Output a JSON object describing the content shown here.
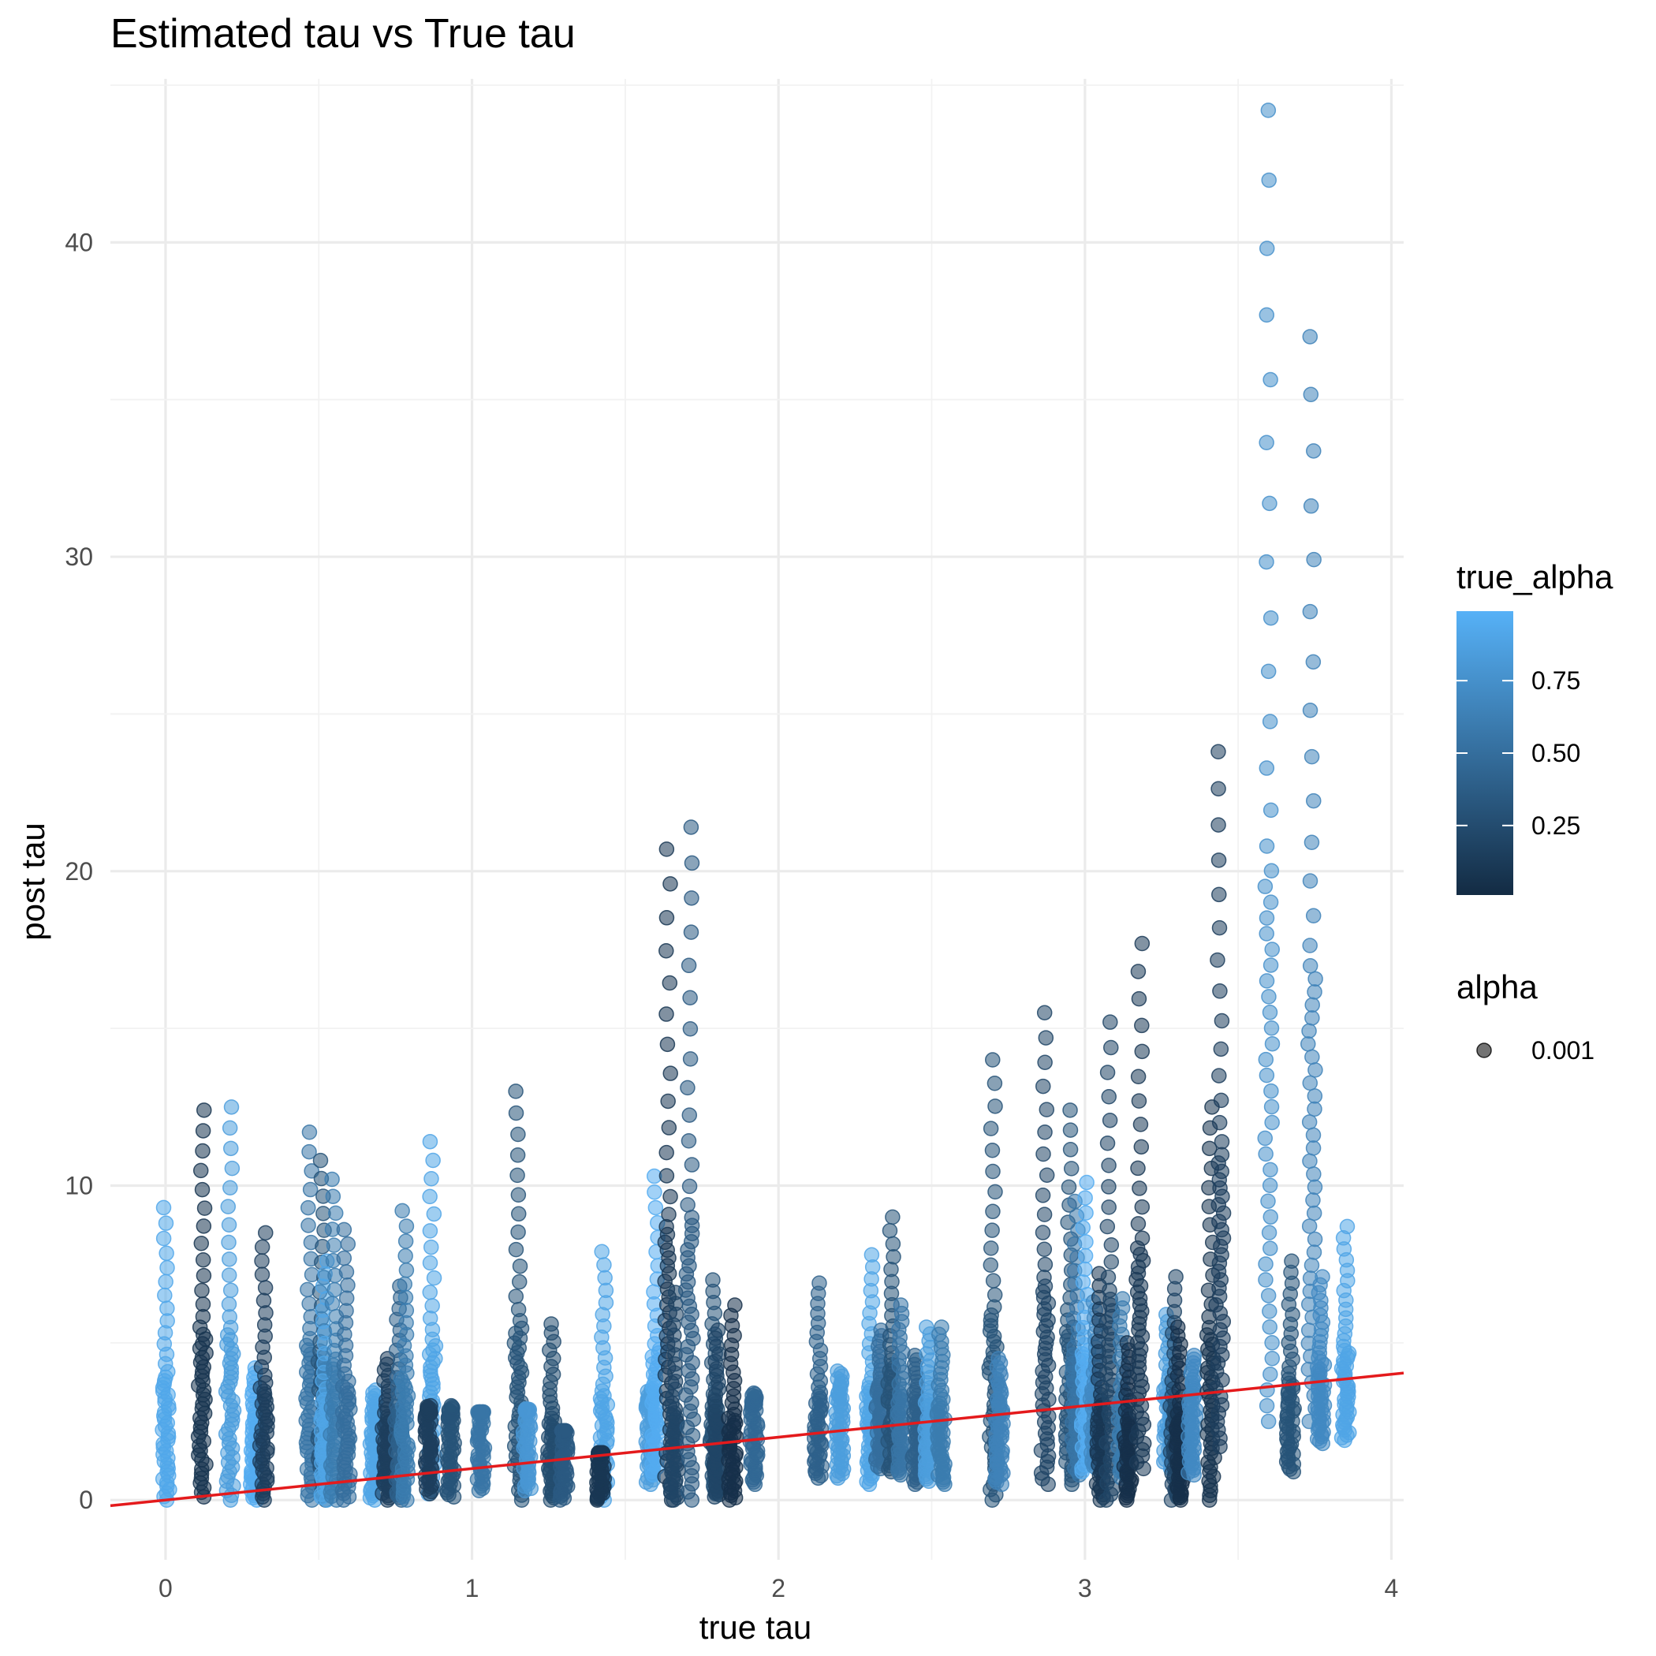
{
  "chart_data": {
    "type": "scatter",
    "title": "Estimated tau vs True tau",
    "xlabel": "true tau",
    "ylabel": "post tau",
    "xlim": [
      -0.18,
      4.04
    ],
    "ylim": [
      -1.9,
      45.2
    ],
    "x_ticks": [
      "0",
      "1",
      "2",
      "3",
      "4"
    ],
    "x_tick_values": [
      0,
      1,
      2,
      3,
      4
    ],
    "y_ticks": [
      "0",
      "10",
      "20",
      "30",
      "40"
    ],
    "y_tick_values": [
      0,
      10,
      20,
      30,
      40
    ],
    "grid": true,
    "color_legend": {
      "title": "true_alpha",
      "ticks": [
        "0.25",
        "0.50",
        "0.75"
      ],
      "tick_values": [
        0.25,
        0.5,
        0.75
      ],
      "range": [
        0.01,
        0.99
      ],
      "low_color": "#132B43",
      "high_color": "#56B1F7"
    },
    "alpha_legend": {
      "title": "alpha",
      "labels": [
        "0.001"
      ]
    },
    "reference_line": {
      "label": "y = x",
      "slope": 1,
      "intercept": 0,
      "color": "#E41A1C"
    },
    "series": [
      {
        "x": 0.0,
        "true_alpha": 0.92,
        "min": 0.0,
        "max": 9.3
      },
      {
        "x": 0.12,
        "true_alpha": 0.08,
        "min": 0.1,
        "max": 12.4
      },
      {
        "x": 0.21,
        "true_alpha": 0.85,
        "min": 0.0,
        "max": 12.5
      },
      {
        "x": 0.29,
        "true_alpha": 0.95,
        "min": 0.0,
        "max": 4.2
      },
      {
        "x": 0.32,
        "true_alpha": 0.15,
        "min": 0.0,
        "max": 8.5
      },
      {
        "x": 0.47,
        "true_alpha": 0.55,
        "min": 0.0,
        "max": 11.7
      },
      {
        "x": 0.51,
        "true_alpha": 0.3,
        "min": 0.0,
        "max": 10.8
      },
      {
        "x": 0.52,
        "true_alpha": 0.9,
        "min": 0.0,
        "max": 7.6
      },
      {
        "x": 0.55,
        "true_alpha": 0.6,
        "min": 0.0,
        "max": 10.2
      },
      {
        "x": 0.59,
        "true_alpha": 0.5,
        "min": 0.0,
        "max": 8.6
      },
      {
        "x": 0.68,
        "true_alpha": 0.9,
        "min": 0.0,
        "max": 3.5
      },
      {
        "x": 0.72,
        "true_alpha": 0.15,
        "min": 0.0,
        "max": 4.5
      },
      {
        "x": 0.76,
        "true_alpha": 0.4,
        "min": 0.0,
        "max": 6.8
      },
      {
        "x": 0.78,
        "true_alpha": 0.6,
        "min": 0.0,
        "max": 9.2
      },
      {
        "x": 0.87,
        "true_alpha": 0.9,
        "min": 0.2,
        "max": 11.4
      },
      {
        "x": 0.86,
        "true_alpha": 0.15,
        "min": 0.2,
        "max": 3.0
      },
      {
        "x": 0.93,
        "true_alpha": 0.3,
        "min": 0.1,
        "max": 3.0
      },
      {
        "x": 1.03,
        "true_alpha": 0.55,
        "min": 0.3,
        "max": 2.8
      },
      {
        "x": 1.15,
        "true_alpha": 0.3,
        "min": 0.0,
        "max": 13.0
      },
      {
        "x": 1.18,
        "true_alpha": 0.8,
        "min": 0.3,
        "max": 2.9
      },
      {
        "x": 1.26,
        "true_alpha": 0.25,
        "min": 0.0,
        "max": 5.6
      },
      {
        "x": 1.3,
        "true_alpha": 0.35,
        "min": 0.0,
        "max": 2.2
      },
      {
        "x": 1.43,
        "true_alpha": 0.9,
        "min": 0.0,
        "max": 7.9
      },
      {
        "x": 1.42,
        "true_alpha": 0.1,
        "min": 0.0,
        "max": 1.5
      },
      {
        "x": 1.58,
        "true_alpha": 0.85,
        "min": 0.5,
        "max": 3.5
      },
      {
        "x": 1.6,
        "true_alpha": 0.95,
        "min": 0.8,
        "max": 10.3
      },
      {
        "x": 1.64,
        "true_alpha": 0.1,
        "min": 0.0,
        "max": 20.7
      },
      {
        "x": 1.66,
        "true_alpha": 0.2,
        "min": 0.0,
        "max": 6.6
      },
      {
        "x": 1.71,
        "true_alpha": 0.35,
        "min": 0.0,
        "max": 21.4
      },
      {
        "x": 1.79,
        "true_alpha": 0.3,
        "min": 0.2,
        "max": 7.0
      },
      {
        "x": 1.8,
        "true_alpha": 0.2,
        "min": 0.1,
        "max": 5.4
      },
      {
        "x": 1.85,
        "true_alpha": 0.05,
        "min": 0.0,
        "max": 6.2
      },
      {
        "x": 1.92,
        "true_alpha": 0.45,
        "min": 0.5,
        "max": 3.4
      },
      {
        "x": 2.13,
        "true_alpha": 0.4,
        "min": 0.7,
        "max": 6.9
      },
      {
        "x": 2.2,
        "true_alpha": 0.85,
        "min": 0.7,
        "max": 4.1
      },
      {
        "x": 2.3,
        "true_alpha": 0.9,
        "min": 0.5,
        "max": 7.8
      },
      {
        "x": 2.33,
        "true_alpha": 0.5,
        "min": 1.0,
        "max": 5.4
      },
      {
        "x": 2.37,
        "true_alpha": 0.3,
        "min": 0.9,
        "max": 9.0
      },
      {
        "x": 2.4,
        "true_alpha": 0.55,
        "min": 0.8,
        "max": 6.2
      },
      {
        "x": 2.45,
        "true_alpha": 0.4,
        "min": 0.5,
        "max": 4.6
      },
      {
        "x": 2.49,
        "true_alpha": 0.85,
        "min": 0.6,
        "max": 5.5
      },
      {
        "x": 2.53,
        "true_alpha": 0.6,
        "min": 0.5,
        "max": 5.5
      },
      {
        "x": 2.7,
        "true_alpha": 0.3,
        "min": 0.0,
        "max": 14.0
      },
      {
        "x": 2.72,
        "true_alpha": 0.65,
        "min": 0.5,
        "max": 4.5
      },
      {
        "x": 2.87,
        "true_alpha": 0.2,
        "min": 0.5,
        "max": 15.5
      },
      {
        "x": 2.95,
        "true_alpha": 0.3,
        "min": 0.5,
        "max": 12.4
      },
      {
        "x": 2.97,
        "true_alpha": 0.55,
        "min": 0.8,
        "max": 9.5
      },
      {
        "x": 3.0,
        "true_alpha": 0.95,
        "min": 0.9,
        "max": 10.1
      },
      {
        "x": 3.03,
        "true_alpha": 0.7,
        "min": 1.0,
        "max": 6.3
      },
      {
        "x": 3.05,
        "true_alpha": 0.1,
        "min": 0.0,
        "max": 7.2
      },
      {
        "x": 3.08,
        "true_alpha": 0.2,
        "min": 0.0,
        "max": 15.2
      },
      {
        "x": 3.12,
        "true_alpha": 0.6,
        "min": 0.7,
        "max": 6.4
      },
      {
        "x": 3.14,
        "true_alpha": 0.05,
        "min": 0.0,
        "max": 5.0
      },
      {
        "x": 3.18,
        "true_alpha": 0.12,
        "min": 1.0,
        "max": 17.7
      },
      {
        "x": 3.27,
        "true_alpha": 0.85,
        "min": 1.0,
        "max": 5.9
      },
      {
        "x": 3.29,
        "true_alpha": 0.2,
        "min": 0.0,
        "max": 7.1
      },
      {
        "x": 3.31,
        "true_alpha": 0.05,
        "min": 0.0,
        "max": 5.5
      },
      {
        "x": 3.35,
        "true_alpha": 0.7,
        "min": 0.8,
        "max": 4.6
      },
      {
        "x": 3.41,
        "true_alpha": 0.08,
        "min": 0.0,
        "max": 12.5
      },
      {
        "x": 3.44,
        "true_alpha": 0.15,
        "min": 1.7,
        "max": 23.8
      },
      {
        "x": 3.6,
        "true_alpha": 0.75,
        "min": 2.5,
        "max": 44.2
      },
      {
        "x": 3.67,
        "true_alpha": 0.3,
        "min": 0.9,
        "max": 7.6
      },
      {
        "x": 3.74,
        "true_alpha": 0.65,
        "min": 2.5,
        "max": 37.0
      },
      {
        "x": 3.77,
        "true_alpha": 0.7,
        "min": 1.8,
        "max": 7.1
      },
      {
        "x": 3.85,
        "true_alpha": 0.9,
        "min": 1.9,
        "max": 8.7
      }
    ]
  }
}
